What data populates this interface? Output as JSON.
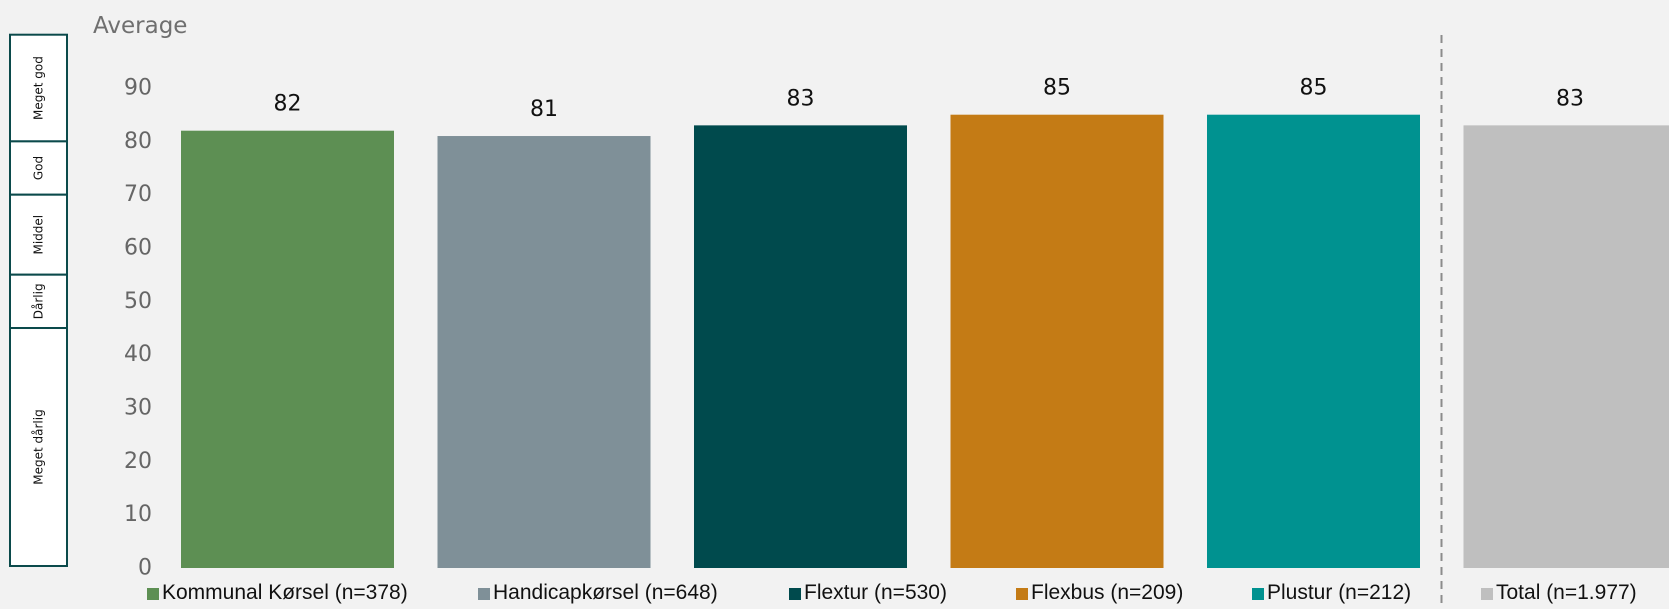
{
  "chart_data": {
    "type": "bar",
    "title": "",
    "ylabel": "Average",
    "xlabel": "",
    "ylim": [
      0,
      90
    ],
    "yticks": [
      0,
      10,
      20,
      30,
      40,
      50,
      60,
      70,
      80,
      90
    ],
    "grid": false,
    "legend_position": "bottom",
    "categories": [
      "Kommunal Kørsel (n=378)",
      "Handicapkørsel (n=648)",
      "Flextur (n=530)",
      "Flexbus (n=209)",
      "Plustur (n=212)",
      "Total (n=1.977)"
    ],
    "values": [
      82,
      81,
      83,
      85,
      85,
      83
    ],
    "colors": [
      "#5d8f53",
      "#7f9098",
      "#004a4d",
      "#c47b15",
      "#009290",
      "#bfbfbf"
    ],
    "separator_before_index": 5,
    "rating_bands": [
      {
        "label": "Meget god",
        "from": 80,
        "to": 100
      },
      {
        "label": "God",
        "from": 70,
        "to": 80
      },
      {
        "label": "Middel",
        "from": 55,
        "to": 70
      },
      {
        "label": "Dårlig",
        "from": 45,
        "to": 55
      },
      {
        "label": "Meget dårlig",
        "from": 0,
        "to": 45
      }
    ]
  }
}
